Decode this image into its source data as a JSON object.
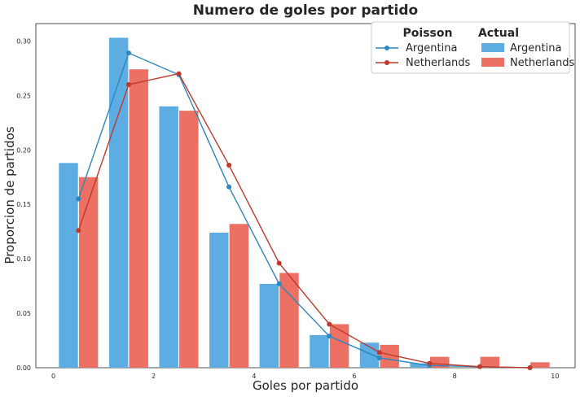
{
  "chart_data": {
    "type": "bar",
    "title": "Numero de goles por partido",
    "xlabel": "Goles por partido",
    "ylabel": "Proporcion de partidos",
    "xlim": [
      -0.35,
      10.4
    ],
    "ylim": [
      0,
      0.316
    ],
    "xticks": [
      0,
      2,
      4,
      6,
      8,
      10
    ],
    "yticks": [
      0.0,
      0.05,
      0.1,
      0.15,
      0.2,
      0.25,
      0.3
    ],
    "grid": false,
    "legend_position": "top-right",
    "legend": {
      "poisson_title": "Poisson",
      "actual_title": "Actual"
    },
    "bar_series": [
      {
        "name": "Argentina",
        "color": "#5DADE2",
        "x": [
          0.5,
          1.5,
          2.5,
          3.5,
          4.5,
          5.5,
          6.5,
          7.5
        ],
        "values": [
          0.188,
          0.303,
          0.24,
          0.124,
          0.077,
          0.03,
          0.023,
          0.004
        ]
      },
      {
        "name": "Netherlands",
        "color": "#EC7063",
        "x": [
          0.5,
          1.5,
          2.5,
          3.5,
          4.5,
          5.5,
          6.5,
          7.5,
          8.5,
          9.5
        ],
        "values": [
          0.175,
          0.274,
          0.236,
          0.132,
          0.087,
          0.04,
          0.021,
          0.01,
          0.01,
          0.005
        ]
      }
    ],
    "line_series": [
      {
        "name": "Argentina",
        "color": "#2E86C1",
        "x": [
          0.5,
          1.5,
          2.5,
          3.5,
          4.5,
          5.5,
          6.5,
          7.5,
          8.5,
          9.5
        ],
        "values": [
          0.155,
          0.289,
          0.269,
          0.166,
          0.077,
          0.029,
          0.009,
          0.002,
          0.001,
          0.0
        ]
      },
      {
        "name": "Netherlands",
        "color": "#C0392B",
        "x": [
          0.5,
          1.5,
          2.5,
          3.5,
          4.5,
          5.5,
          6.5,
          7.5,
          8.5,
          9.5
        ],
        "values": [
          0.126,
          0.26,
          0.27,
          0.186,
          0.096,
          0.04,
          0.014,
          0.004,
          0.001,
          0.0
        ]
      }
    ]
  }
}
